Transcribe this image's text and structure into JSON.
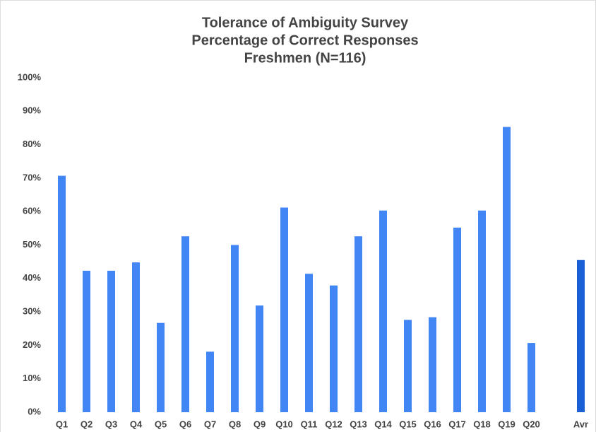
{
  "chart_data": {
    "type": "bar",
    "title": "Tolerance of Ambiguity Survey",
    "subtitle": [
      "Percentage of Correct Responses",
      "Freshmen (N=116)"
    ],
    "categories": [
      "Q1",
      "Q2",
      "Q3",
      "Q4",
      "Q5",
      "Q6",
      "Q7",
      "Q8",
      "Q9",
      "Q10",
      "Q11",
      "Q12",
      "Q13",
      "Q14",
      "Q15",
      "Q16",
      "Q17",
      "Q18",
      "Q19",
      "Q20",
      null,
      "Avr"
    ],
    "values": [
      70.7,
      42.3,
      42.3,
      44.8,
      26.7,
      52.6,
      18.1,
      50.0,
      31.9,
      61.2,
      41.4,
      37.9,
      52.6,
      60.3,
      27.6,
      28.4,
      55.2,
      60.3,
      85.3,
      20.7,
      null,
      45.5
    ],
    "colors": [
      "#4285f4",
      "#4285f4",
      "#4285f4",
      "#4285f4",
      "#4285f4",
      "#4285f4",
      "#4285f4",
      "#4285f4",
      "#4285f4",
      "#4285f4",
      "#4285f4",
      "#4285f4",
      "#4285f4",
      "#4285f4",
      "#4285f4",
      "#4285f4",
      "#4285f4",
      "#4285f4",
      "#4285f4",
      "#4285f4",
      null,
      "#1a5fd6"
    ],
    "ylim": [
      0,
      100
    ],
    "yticks": [
      {
        "value": 0,
        "label": "0%"
      },
      {
        "value": 10,
        "label": "10%"
      },
      {
        "value": 20,
        "label": "20%"
      },
      {
        "value": 30,
        "label": "30%"
      },
      {
        "value": 40,
        "label": "40%"
      },
      {
        "value": 50,
        "label": "50%"
      },
      {
        "value": 60,
        "label": "60%"
      },
      {
        "value": 70,
        "label": "70%"
      },
      {
        "value": 80,
        "label": "80%"
      },
      {
        "value": 90,
        "label": "90%"
      },
      {
        "value": 100,
        "label": "100%"
      }
    ],
    "grid": false
  }
}
